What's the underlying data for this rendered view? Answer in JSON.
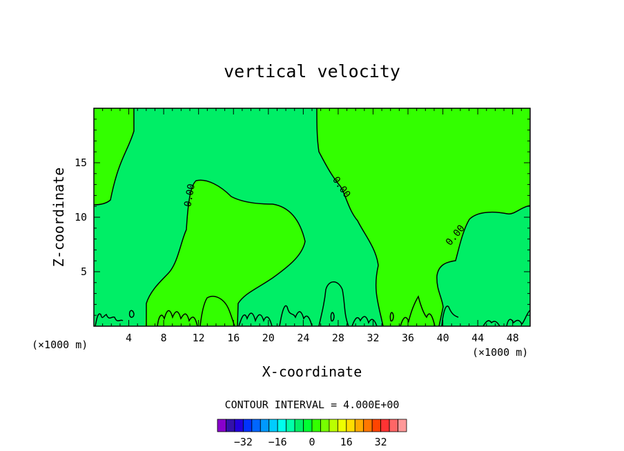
{
  "chart_data": {
    "type": "contour",
    "title": "vertical velocity",
    "xlabel": "X-coordinate",
    "ylabel": "Z-coordinate",
    "x_unit": "(×1000 m)",
    "x_unit_right": "(×1000 m)",
    "xlim": [
      0,
      50
    ],
    "ylim": [
      0,
      20
    ],
    "x_ticks_labeled": [
      "4",
      "8",
      "12",
      "16",
      "20",
      "24",
      "28",
      "32",
      "36",
      "40",
      "44",
      "48"
    ],
    "y_ticks_labeled": [
      "5",
      "10",
      "15"
    ],
    "contour_interval_label": "CONTOUR INTERVAL = 4.000E+00",
    "contour_labels": [
      "0.00",
      "0.00",
      "0.00"
    ],
    "colorbar": {
      "colors": [
        "#8800cc",
        "#3311aa",
        "#2200dd",
        "#0033ff",
        "#0066ff",
        "#0099ff",
        "#00ccff",
        "#00ffee",
        "#00ffaa",
        "#00ee66",
        "#00ff33",
        "#33ff00",
        "#77ff00",
        "#bbff00",
        "#eeff00",
        "#ffdd00",
        "#ffaa00",
        "#ff7700",
        "#ff4400",
        "#ff3333",
        "#ff6666",
        "#ff9999"
      ],
      "tick_labels": [
        "-32",
        "-16",
        "0",
        "16",
        "32"
      ],
      "tick_values": [
        -32,
        -16,
        0,
        16,
        32
      ]
    },
    "colors": {
      "positive_region": "#33ff00",
      "negative_region": "#00ee66"
    }
  }
}
